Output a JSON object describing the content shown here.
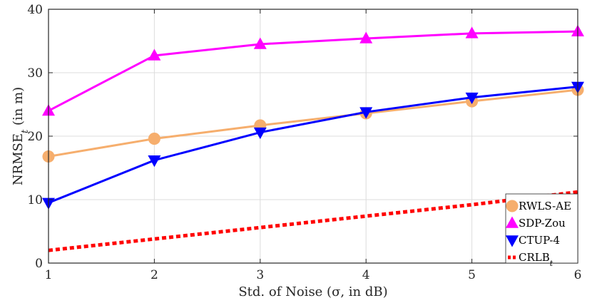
{
  "chart_data": {
    "type": "line",
    "title": "",
    "xlabel": "Std. of Noise (σ, in dB)",
    "ylabel_main": "NRMSE",
    "ylabel_sub": "t",
    "ylabel_suffix": " (in m)",
    "x": [
      1,
      2,
      3,
      4,
      5,
      6
    ],
    "xlim": [
      1,
      6
    ],
    "ylim": [
      0,
      40
    ],
    "xticks": [
      "1",
      "2",
      "3",
      "4",
      "5",
      "6"
    ],
    "yticks": [
      "0",
      "10",
      "20",
      "30",
      "40"
    ],
    "grid": true,
    "legend_position": "bottom-right",
    "series": [
      {
        "name": "RWLS-AE",
        "label_main": "RWLS-AE",
        "label_sub": "",
        "color": "#F6AE6D",
        "marker": "circle",
        "line": "solid",
        "values": [
          16.8,
          19.6,
          21.7,
          23.6,
          25.5,
          27.3
        ]
      },
      {
        "name": "SDP-Zou",
        "label_main": "SDP-Zou",
        "label_sub": "",
        "color": "#FF00FF",
        "marker": "triangle-up",
        "line": "solid",
        "values": [
          24.0,
          32.7,
          34.5,
          35.4,
          36.2,
          36.5
        ]
      },
      {
        "name": "CTUP-4",
        "label_main": "CTUP-4",
        "label_sub": "",
        "color": "#0000FF",
        "marker": "triangle-down",
        "line": "solid",
        "values": [
          9.5,
          16.2,
          20.6,
          23.8,
          26.1,
          27.8
        ]
      },
      {
        "name": "CRLB_t",
        "label_main": "CRLB",
        "label_sub": "t",
        "color": "#FF0000",
        "marker": "none",
        "line": "dotted",
        "values": [
          2.0,
          3.8,
          5.6,
          7.4,
          9.2,
          11.2
        ]
      }
    ]
  }
}
